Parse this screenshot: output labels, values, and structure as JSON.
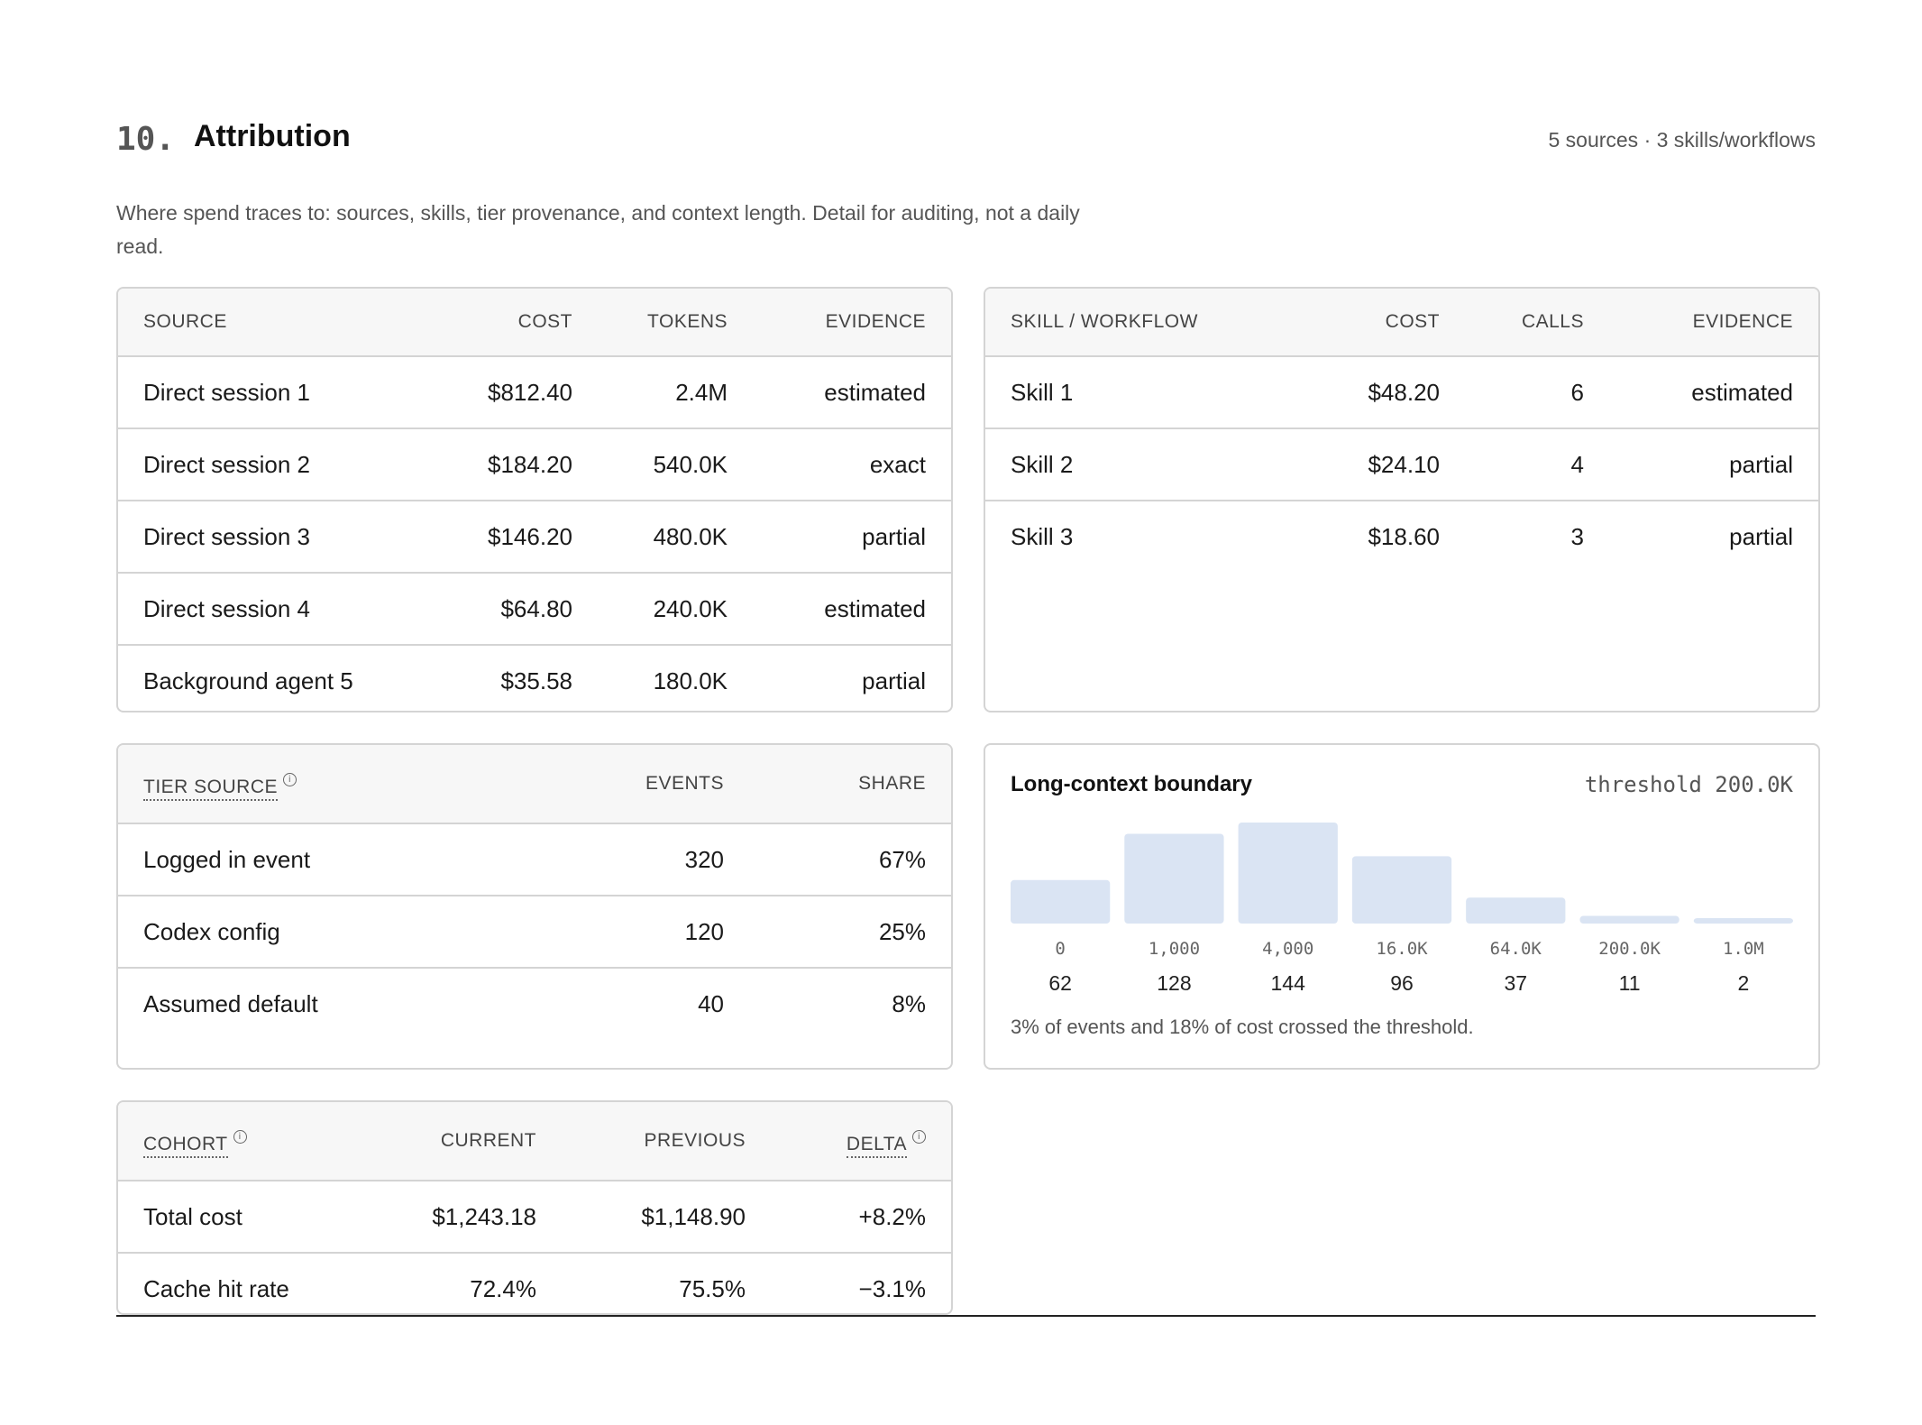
{
  "header": {
    "section_number": "10.",
    "title": "Attribution",
    "meta": "5 sources · 3 skills/workflows",
    "description": "Where spend traces to: sources, skills, tier provenance, and context length. Detail for auditing, not a daily read."
  },
  "sources_table": {
    "headers": [
      "SOURCE",
      "COST",
      "TOKENS",
      "EVIDENCE"
    ],
    "rows": [
      [
        "Direct session 1",
        "$812.40",
        "2.4M",
        "estimated"
      ],
      [
        "Direct session 2",
        "$184.20",
        "540.0K",
        "exact"
      ],
      [
        "Direct session 3",
        "$146.20",
        "480.0K",
        "partial"
      ],
      [
        "Direct session 4",
        "$64.80",
        "240.0K",
        "estimated"
      ],
      [
        "Background agent 5",
        "$35.58",
        "180.0K",
        "partial"
      ]
    ]
  },
  "skills_table": {
    "headers": [
      "SKILL / WORKFLOW",
      "COST",
      "CALLS",
      "EVIDENCE"
    ],
    "rows": [
      [
        "Skill 1",
        "$48.20",
        "6",
        "estimated"
      ],
      [
        "Skill 2",
        "$24.10",
        "4",
        "partial"
      ],
      [
        "Skill 3",
        "$18.60",
        "3",
        "partial"
      ]
    ]
  },
  "tier_table": {
    "headers": [
      "TIER SOURCE",
      "EVENTS",
      "SHARE"
    ],
    "info_icon": "info-icon",
    "rows": [
      [
        "Logged in event",
        "320",
        "67%"
      ],
      [
        "Codex config",
        "120",
        "25%"
      ],
      [
        "Assumed default",
        "40",
        "8%"
      ]
    ]
  },
  "cohort_table": {
    "headers": [
      "COHORT",
      "CURRENT",
      "PREVIOUS",
      "DELTA"
    ],
    "info_icon": "info-icon",
    "rows": [
      [
        "Total cost",
        "$1,243.18",
        "$1,148.90",
        "+8.2%"
      ],
      [
        "Cache hit rate",
        "72.4%",
        "75.5%",
        "−3.1%"
      ]
    ]
  },
  "long_context": {
    "title": "Long-context boundary",
    "threshold_label": "threshold 200.0K",
    "note": "3% of events and 18% of cost crossed the threshold.",
    "bar_color": "#dae4f3"
  },
  "chart_data": {
    "type": "bar",
    "title": "Long-context boundary",
    "categories": [
      "0",
      "1,000",
      "4,000",
      "16.0K",
      "64.0K",
      "200.0K",
      "1.0M"
    ],
    "values": [
      62,
      128,
      144,
      96,
      37,
      11,
      2
    ],
    "xlabel": "",
    "ylabel": "",
    "ylim": [
      0,
      144
    ],
    "grid": false
  }
}
